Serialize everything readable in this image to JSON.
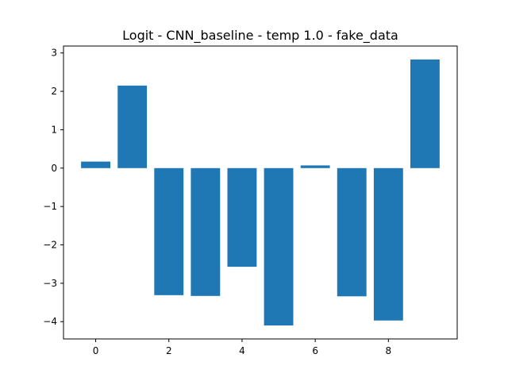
{
  "chart_data": {
    "type": "bar",
    "title": "Logit - CNN_baseline - temp 1.0 - fake_data",
    "xlabel": "",
    "ylabel": "",
    "x": [
      0,
      1,
      2,
      3,
      4,
      5,
      6,
      7,
      8,
      9
    ],
    "values": [
      0.17,
      2.15,
      -3.31,
      -3.33,
      -2.57,
      -4.1,
      0.07,
      -3.34,
      -3.97,
      2.83
    ],
    "xlim": [
      -0.88,
      9.88
    ],
    "ylim": [
      -4.45,
      3.18
    ],
    "xticks": [
      0,
      2,
      4,
      6,
      8
    ],
    "xtick_labels": [
      "0",
      "2",
      "4",
      "6",
      "8"
    ],
    "yticks": [
      -4,
      -3,
      -2,
      -1,
      0,
      1,
      2,
      3
    ],
    "ytick_labels": [
      "−4",
      "−3",
      "−2",
      "−1",
      "0",
      "1",
      "2",
      "3"
    ],
    "bar_width": 0.8,
    "bar_color": "#1f77b4",
    "grid": false
  }
}
